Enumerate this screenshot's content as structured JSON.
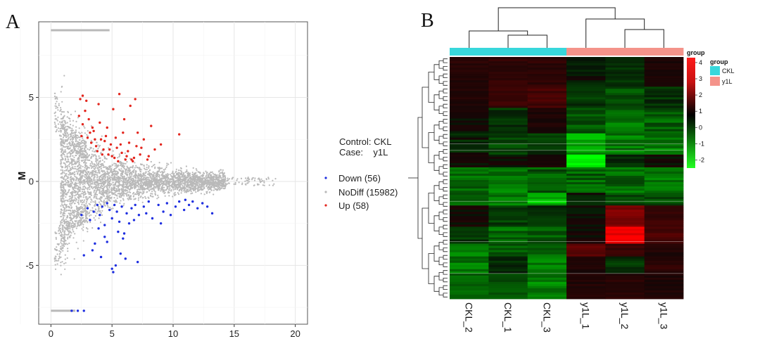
{
  "panels": {
    "a_letter": "A",
    "b_letter": "B"
  },
  "chart_data": [
    {
      "type": "scatter",
      "title": "",
      "xlabel": "",
      "ylabel": "M",
      "xlim": [
        -1,
        21
      ],
      "ylim": [
        -8.5,
        9.5
      ],
      "x_ticks": [
        "0",
        "5",
        "10",
        "15",
        "20"
      ],
      "y_ticks": [
        "-5",
        "0",
        "5"
      ],
      "legend_header": {
        "control_label": "Control: CKL",
        "case_label": "Case:    y1L"
      },
      "series": [
        {
          "name": "Down (56)",
          "color": "#1f2fe0",
          "points": [
            [
              2.5,
              -2.0
            ],
            [
              3.0,
              -1.6
            ],
            [
              3.2,
              -2.3
            ],
            [
              3.5,
              -1.8
            ],
            [
              3.8,
              -1.4
            ],
            [
              4.0,
              -2.0
            ],
            [
              4.2,
              -1.5
            ],
            [
              4.4,
              -2.6
            ],
            [
              4.6,
              -1.3
            ],
            [
              4.8,
              -1.7
            ],
            [
              5.0,
              -2.2
            ],
            [
              5.2,
              -1.4
            ],
            [
              5.4,
              -1.8
            ],
            [
              5.6,
              -2.4
            ],
            [
              5.8,
              -1.5
            ],
            [
              6.0,
              -3.1
            ],
            [
              6.2,
              -1.9
            ],
            [
              6.4,
              -2.5
            ],
            [
              6.6,
              -1.6
            ],
            [
              6.9,
              -1.4
            ],
            [
              7.2,
              -2.0
            ],
            [
              7.6,
              -1.5
            ],
            [
              8.0,
              -1.2
            ],
            [
              8.3,
              -2.2
            ],
            [
              8.8,
              -1.4
            ],
            [
              9.2,
              -1.8
            ],
            [
              9.5,
              -1.3
            ],
            [
              9.8,
              -2.0
            ],
            [
              10.2,
              -1.5
            ],
            [
              10.5,
              -1.2
            ],
            [
              10.9,
              -1.7
            ],
            [
              11.3,
              -1.4
            ],
            [
              11.6,
              -1.2
            ],
            [
              12.0,
              -1.6
            ],
            [
              12.4,
              -1.3
            ],
            [
              12.8,
              -1.5
            ],
            [
              13.2,
              -1.9
            ],
            [
              3.6,
              -3.7
            ],
            [
              4.1,
              -4.5
            ],
            [
              4.4,
              -3.3
            ],
            [
              5.0,
              -5.2
            ],
            [
              5.3,
              -5.0
            ],
            [
              5.7,
              -4.3
            ],
            [
              6.1,
              -4.6
            ],
            [
              5.5,
              -3.0
            ],
            [
              7.1,
              -4.8
            ],
            [
              2.7,
              -4.4
            ],
            [
              3.9,
              -2.8
            ],
            [
              6.8,
              -2.3
            ],
            [
              4.6,
              -3.6
            ],
            [
              3.4,
              -4.1
            ],
            [
              5.9,
              -3.4
            ],
            [
              5.1,
              -5.4
            ],
            [
              9.0,
              -2.5
            ],
            [
              11.0,
              -1.1
            ],
            [
              7.8,
              -1.9
            ]
          ]
        },
        {
          "name": "NoDiff (15982)",
          "color": "#b9b9b9",
          "points": []
        },
        {
          "name": "Up (58)",
          "color": "#e3261e",
          "points": [
            [
              2.4,
              4.9
            ],
            [
              2.6,
              3.4
            ],
            [
              2.8,
              4.2
            ],
            [
              3.0,
              2.6
            ],
            [
              3.1,
              3.7
            ],
            [
              3.3,
              2.3
            ],
            [
              3.5,
              3.0
            ],
            [
              3.7,
              2.1
            ],
            [
              3.9,
              4.6
            ],
            [
              4.1,
              2.5
            ],
            [
              4.3,
              1.9
            ],
            [
              4.5,
              2.7
            ],
            [
              4.7,
              1.6
            ],
            [
              4.9,
              2.2
            ],
            [
              5.1,
              4.3
            ],
            [
              5.2,
              1.4
            ],
            [
              5.4,
              2.0
            ],
            [
              5.6,
              5.2
            ],
            [
              5.8,
              1.7
            ],
            [
              6.0,
              3.7
            ],
            [
              6.2,
              1.5
            ],
            [
              6.4,
              2.3
            ],
            [
              6.6,
              1.3
            ],
            [
              6.9,
              4.9
            ],
            [
              7.1,
              2.9
            ],
            [
              7.3,
              1.6
            ],
            [
              7.6,
              2.5
            ],
            [
              7.9,
              1.3
            ],
            [
              8.2,
              3.3
            ],
            [
              8.5,
              1.9
            ],
            [
              2.3,
              3.9
            ],
            [
              2.9,
              4.8
            ],
            [
              3.4,
              3.2
            ],
            [
              4.0,
              3.5
            ],
            [
              4.6,
              3.2
            ],
            [
              5.3,
              2.6
            ],
            [
              5.9,
              2.9
            ],
            [
              6.3,
              1.8
            ],
            [
              6.8,
              1.4
            ],
            [
              7.0,
              2.1
            ],
            [
              3.2,
              2.9
            ],
            [
              4.4,
              2.4
            ],
            [
              5.0,
              1.5
            ],
            [
              5.5,
              1.2
            ],
            [
              3.8,
              1.8
            ],
            [
              4.2,
              1.6
            ],
            [
              6.1,
              1.3
            ],
            [
              6.7,
              1.2
            ],
            [
              2.5,
              2.7
            ],
            [
              3.6,
              2.5
            ],
            [
              4.8,
              1.9
            ],
            [
              5.7,
              2.2
            ],
            [
              10.5,
              2.8
            ],
            [
              9.0,
              2.2
            ],
            [
              2.6,
              5.1
            ],
            [
              6.5,
              4.5
            ],
            [
              7.4,
              2.0
            ],
            [
              8.0,
              1.5
            ]
          ]
        }
      ],
      "nodiff_bands": [
        {
          "y": 9.0,
          "x_from": 0.0,
          "x_to": 4.8
        },
        {
          "y": -7.7,
          "x_from": 0.0,
          "x_to": 2.0
        }
      ]
    },
    {
      "type": "heatmap",
      "title": "",
      "columns": [
        "CKL_2",
        "CKL_1",
        "CKL_3",
        "y1L_1",
        "y1L_2",
        "y1L_3"
      ],
      "column_groups": [
        "CKL",
        "CKL",
        "CKL",
        "y1L",
        "y1L",
        "y1L"
      ],
      "group_legend": {
        "title": "group",
        "items": [
          {
            "label": "CKL",
            "color": "#38d7db"
          },
          {
            "label": "y1L",
            "color": "#f4938a"
          }
        ]
      },
      "colorbar": {
        "title": "group",
        "ticks": [
          "4",
          "3",
          "2",
          "1",
          "0",
          "-1",
          "-2"
        ],
        "min": -2.5,
        "max": 4.3
      },
      "row_count": 114,
      "row_blocks": [
        {
          "rows": 14,
          "values": [
            0.7,
            1.0,
            0.9,
            -0.2,
            -0.4,
            0.3
          ]
        },
        {
          "rows": 10,
          "values": [
            0.5,
            1.2,
            1.5,
            -0.6,
            -0.9,
            -0.5
          ]
        },
        {
          "rows": 12,
          "values": [
            0.1,
            -0.5,
            0.4,
            -1.0,
            -1.3,
            -1.1
          ]
        },
        {
          "rows": 10,
          "values": [
            -0.3,
            -0.9,
            -0.6,
            -1.8,
            -1.4,
            -1.5
          ]
        },
        {
          "rows": 6,
          "values": [
            0.2,
            0.0,
            0.3,
            -2.5,
            -0.5,
            0.1
          ]
        },
        {
          "rows": 12,
          "values": [
            -1.2,
            -1.3,
            -1.0,
            -1.1,
            -1.2,
            -1.3
          ]
        },
        {
          "rows": 6,
          "values": [
            -1.0,
            -1.4,
            -2.0,
            -0.3,
            -0.8,
            -1.0
          ]
        },
        {
          "rows": 10,
          "values": [
            0.2,
            -0.7,
            -0.4,
            0.1,
            2.5,
            1.2
          ]
        },
        {
          "rows": 8,
          "values": [
            -0.6,
            -1.2,
            -1.0,
            0.3,
            4.2,
            1.6
          ]
        },
        {
          "rows": 6,
          "values": [
            -1.3,
            -1.0,
            -1.1,
            2.1,
            1.3,
            0.5
          ]
        },
        {
          "rows": 8,
          "values": [
            -1.4,
            -0.4,
            -1.3,
            0.4,
            -0.6,
            0.9
          ]
        },
        {
          "rows": 12,
          "values": [
            -1.2,
            -0.8,
            -1.5,
            0.5,
            0.7,
            0.4
          ]
        }
      ]
    }
  ]
}
